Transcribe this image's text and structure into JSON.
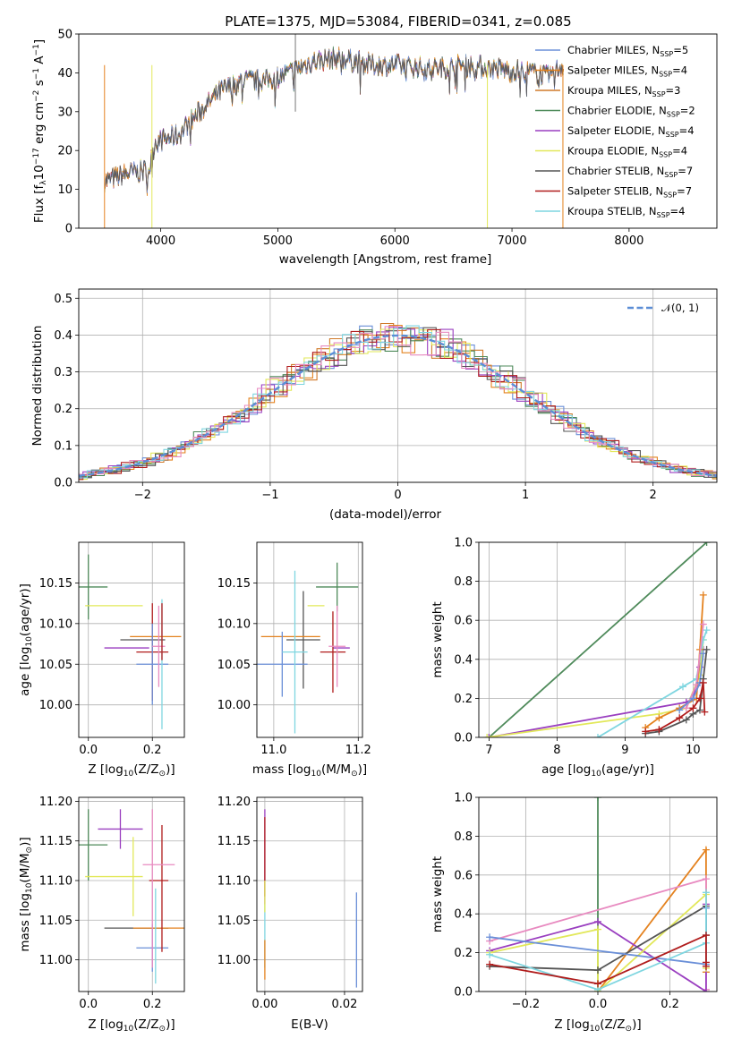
{
  "figure_title": "PLATE=1375, MJD=53084, FIBERID=0341, z=0.085",
  "colors": {
    "chabrier_miles": "#6a8fd8",
    "salpeter_miles": "#e4821f",
    "kroupa_miles": "#d07a2a",
    "chabrier_elodie": "#4e8a5a",
    "salpeter_elodie": "#9a3fc0",
    "kroupa_elodie": "#e2e85a",
    "chabrier_stelib": "#555555",
    "salpeter_stelib": "#b01c1c",
    "kroupa_stelib": "#7fd6e0",
    "pink": "#e88ac0",
    "normal": "#5b8ed6",
    "grid": "#b0b0b0"
  },
  "chart_data": [
    {
      "id": "spectrum",
      "type": "line",
      "xlabel": "wavelength [Angstrom, rest frame]",
      "ylabel_main": "Flux [f",
      "ylabel_sub": "λ",
      "ylabel_rest": "10",
      "ylabel_exp": "−17",
      "ylabel_tail": " erg cm",
      "ylabel_exp2": "−2",
      "ylabel_tail2": " s",
      "ylabel_exp3": "−1",
      "ylabel_tail3": " A",
      "ylabel_exp4": "−1",
      "ylabel_end": "]",
      "xlim": [
        3300,
        8750
      ],
      "ylim": [
        0,
        50
      ],
      "xticks": [
        "4000",
        "5000",
        "6000",
        "7000",
        "8000"
      ],
      "yticks": [
        "0",
        "10",
        "20",
        "30",
        "40",
        "50"
      ],
      "legend_position": "upper right",
      "legend": [
        {
          "label": "Chabrier MILES, N",
          "sub": "SSP",
          "val": "=5",
          "color": "#6a8fd8"
        },
        {
          "label": "Salpeter MILES, N",
          "sub": "SSP",
          "val": "=4",
          "color": "#e4821f"
        },
        {
          "label": "Kroupa MILES, N",
          "sub": "SSP",
          "val": "=3",
          "color": "#d07a2a"
        },
        {
          "label": "Chabrier ELODIE, N",
          "sub": "SSP",
          "val": "=2",
          "color": "#4e8a5a"
        },
        {
          "label": "Salpeter ELODIE, N",
          "sub": "SSP",
          "val": "=4",
          "color": "#9a3fc0"
        },
        {
          "label": "Kroupa ELODIE, N",
          "sub": "SSP",
          "val": "=4",
          "color": "#e2e85a"
        },
        {
          "label": "Chabrier STELIB, N",
          "sub": "SSP",
          "val": "=7",
          "color": "#555555"
        },
        {
          "label": "Salpeter STELIB, N",
          "sub": "SSP",
          "val": "=7",
          "color": "#b01c1c"
        },
        {
          "label": "Kroupa STELIB, N",
          "sub": "SSP",
          "val": "=4",
          "color": "#7fd6e0"
        }
      ],
      "continuum": [
        [
          3520,
          12
        ],
        [
          3700,
          14
        ],
        [
          3900,
          15
        ],
        [
          3950,
          22
        ],
        [
          4150,
          24
        ],
        [
          4300,
          29
        ],
        [
          4500,
          35
        ],
        [
          4700,
          38
        ],
        [
          4900,
          38
        ],
        [
          5100,
          40
        ],
        [
          5300,
          43
        ],
        [
          5500,
          44
        ],
        [
          5800,
          42
        ],
        [
          6000,
          42
        ],
        [
          6300,
          41
        ],
        [
          6600,
          42
        ],
        [
          6900,
          41
        ],
        [
          7200,
          40
        ],
        [
          7300,
          39
        ],
        [
          7440,
          42
        ]
      ]
    },
    {
      "id": "residuals",
      "type": "line",
      "xlabel": "(data-model)/error",
      "ylabel": "Normed distribution",
      "xlim": [
        -2.5,
        2.5
      ],
      "ylim": [
        0,
        0.525
      ],
      "xticks": [
        "−2",
        "−1",
        "0",
        "1",
        "2"
      ],
      "yticks": [
        "0.0",
        "0.1",
        "0.2",
        "0.3",
        "0.4",
        "0.5"
      ],
      "legend": "𝒩(0, 1)",
      "legend_position": "upper right"
    },
    {
      "id": "age_vs_z",
      "type": "scatter",
      "xlabel": "Z [log",
      "ylabel": "age  [log",
      "xlim": [
        -0.03,
        0.3
      ],
      "ylim": [
        9.96,
        10.2
      ],
      "xticks": [
        "0.0",
        "0.2"
      ],
      "yticks": [
        "10.00",
        "10.05",
        "10.10",
        "10.15"
      ],
      "points": [
        {
          "x": 0.0,
          "y": 10.145,
          "xerr": 0.06,
          "yerr": 0.04,
          "color": "#4e8a5a"
        },
        {
          "x": 0.08,
          "y": 10.122,
          "xerr": 0.09,
          "yerr": 0.0,
          "color": "#e2e85a"
        },
        {
          "x": 0.12,
          "y": 10.07,
          "xerr": 0.07,
          "yerr": 0.0,
          "color": "#9a3fc0"
        },
        {
          "x": 0.17,
          "y": 10.08,
          "xerr": 0.07,
          "yerr": 0.0,
          "color": "#555555"
        },
        {
          "x": 0.21,
          "y": 10.084,
          "xerr": 0.08,
          "yerr": 0.0,
          "color": "#e4821f"
        },
        {
          "x": 0.2,
          "y": 10.065,
          "xerr": 0.05,
          "yerr": 0.06,
          "color": "#b01c1c"
        },
        {
          "x": 0.2,
          "y": 10.05,
          "xerr": 0.05,
          "yerr": 0.05,
          "color": "#6a8fd8"
        },
        {
          "x": 0.23,
          "y": 10.05,
          "xerr": 0.0,
          "yerr": 0.08,
          "color": "#7fd6e0"
        },
        {
          "x": 0.22,
          "y": 10.072,
          "xerr": 0.02,
          "yerr": 0.05,
          "color": "#e88ac0"
        },
        {
          "x": 0.23,
          "y": 10.09,
          "xerr": 0.0,
          "yerr": 0.035,
          "color": "#b01c1c"
        }
      ]
    },
    {
      "id": "age_vs_mass",
      "type": "scatter",
      "xlabel": "mass [log",
      "ylabel": "",
      "xlim": [
        10.96,
        11.21
      ],
      "ylim": [
        9.96,
        10.2
      ],
      "xticks": [
        "11.0",
        "11.2"
      ],
      "yticks": [
        "10.00",
        "10.05",
        "10.10",
        "10.15"
      ],
      "points": [
        {
          "x": 11.15,
          "y": 10.145,
          "xerr": 0.05,
          "yerr": 0.03,
          "color": "#4e8a5a"
        },
        {
          "x": 11.1,
          "y": 10.122,
          "xerr": 0.02,
          "yerr": 0.0,
          "color": "#e2e85a"
        },
        {
          "x": 11.16,
          "y": 10.07,
          "xerr": 0.02,
          "yerr": 0.0,
          "color": "#9a3fc0"
        },
        {
          "x": 11.07,
          "y": 10.08,
          "xerr": 0.04,
          "yerr": 0.06,
          "color": "#555555"
        },
        {
          "x": 11.04,
          "y": 10.084,
          "xerr": 0.07,
          "yerr": 0.0,
          "color": "#e4821f"
        },
        {
          "x": 11.14,
          "y": 10.065,
          "xerr": 0.03,
          "yerr": 0.05,
          "color": "#b01c1c"
        },
        {
          "x": 11.02,
          "y": 10.05,
          "xerr": 0.06,
          "yerr": 0.04,
          "color": "#6a8fd8"
        },
        {
          "x": 11.05,
          "y": 10.065,
          "xerr": 0.03,
          "yerr": 0.1,
          "color": "#7fd6e0"
        },
        {
          "x": 11.15,
          "y": 10.072,
          "xerr": 0.02,
          "yerr": 0.05,
          "color": "#e88ac0"
        }
      ]
    },
    {
      "id": "weight_vs_age",
      "type": "line",
      "xlabel": "age  [log",
      "ylabel": "mass weight",
      "xlim": [
        6.85,
        10.35
      ],
      "ylim": [
        0,
        1.0
      ],
      "xticks": [
        "7",
        "8",
        "9",
        "10"
      ],
      "yticks": [
        "0.0",
        "0.2",
        "0.4",
        "0.6",
        "0.8",
        "1.0"
      ],
      "series": [
        {
          "color": "#4e8a5a",
          "x": [
            7.0,
            10.2
          ],
          "y": [
            0.0,
            1.0
          ]
        },
        {
          "color": "#9a3fc0",
          "x": [
            7.0,
            9.9,
            10.0,
            10.1,
            10.15
          ],
          "y": [
            0.0,
            0.18,
            0.2,
            0.36,
            0.45
          ]
        },
        {
          "color": "#e2e85a",
          "x": [
            6.97,
            9.5,
            9.9,
            10.1,
            10.15
          ],
          "y": [
            0.0,
            0.12,
            0.15,
            0.32,
            0.5
          ]
        },
        {
          "color": "#7fd6e0",
          "x": [
            8.6,
            9.85,
            10.05,
            10.15,
            10.2
          ],
          "y": [
            0.0,
            0.26,
            0.3,
            0.5,
            0.55
          ]
        },
        {
          "color": "#e4821f",
          "x": [
            9.3,
            9.5,
            9.8,
            10.05,
            10.1,
            10.15
          ],
          "y": [
            0.05,
            0.1,
            0.15,
            0.2,
            0.45,
            0.73
          ]
        },
        {
          "color": "#e88ac0",
          "x": [
            9.9,
            10.05,
            10.15
          ],
          "y": [
            0.15,
            0.27,
            0.58
          ]
        },
        {
          "color": "#6a8fd8",
          "x": [
            9.8,
            10.0,
            10.1,
            10.15
          ],
          "y": [
            0.14,
            0.2,
            0.28,
            0.43
          ]
        },
        {
          "color": "#555555",
          "x": [
            9.3,
            9.5,
            9.9,
            10.0,
            10.1,
            10.15,
            10.2
          ],
          "y": [
            0.02,
            0.03,
            0.09,
            0.12,
            0.14,
            0.3,
            0.45
          ]
        },
        {
          "color": "#b01c1c",
          "x": [
            9.3,
            9.5,
            9.8,
            10.0,
            10.1,
            10.15,
            10.17
          ],
          "y": [
            0.03,
            0.04,
            0.1,
            0.15,
            0.2,
            0.28,
            0.13
          ]
        }
      ]
    },
    {
      "id": "mass_vs_z",
      "type": "scatter",
      "xlabel": "Z [log",
      "ylabel": "mass [log",
      "xlim": [
        -0.03,
        0.3
      ],
      "ylim": [
        10.96,
        11.205
      ],
      "xticks": [
        "0.0",
        "0.2"
      ],
      "yticks": [
        "11.00",
        "11.05",
        "11.10",
        "11.15",
        "11.20"
      ],
      "points": [
        {
          "x": 0.0,
          "y": 11.145,
          "xerr": 0.06,
          "yerr": 0.045,
          "color": "#4e8a5a"
        },
        {
          "x": 0.1,
          "y": 11.165,
          "xerr": 0.07,
          "yerr": 0.025,
          "color": "#9a3fc0"
        },
        {
          "x": 0.08,
          "y": 11.105,
          "xerr": 0.09,
          "yerr": 0.0,
          "color": "#e2e85a"
        },
        {
          "x": 0.14,
          "y": 11.105,
          "xerr": 0.0,
          "yerr": 0.05,
          "color": "#e2e85a"
        },
        {
          "x": 0.15,
          "y": 11.04,
          "xerr": 0.1,
          "yerr": 0.0,
          "color": "#555555"
        },
        {
          "x": 0.22,
          "y": 11.04,
          "xerr": 0.08,
          "yerr": 0.0,
          "color": "#e4821f"
        },
        {
          "x": 0.2,
          "y": 11.015,
          "xerr": 0.05,
          "yerr": 0.03,
          "color": "#6a8fd8"
        },
        {
          "x": 0.22,
          "y": 11.1,
          "xerr": 0.03,
          "yerr": 0.0,
          "color": "#b01c1c"
        },
        {
          "x": 0.2,
          "y": 11.09,
          "xerr": 0.0,
          "yerr": 0.1,
          "color": "#e88ac0"
        },
        {
          "x": 0.23,
          "y": 11.09,
          "xerr": 0.0,
          "yerr": 0.08,
          "color": "#b01c1c"
        },
        {
          "x": 0.21,
          "y": 11.03,
          "xerr": 0.0,
          "yerr": 0.06,
          "color": "#7fd6e0"
        },
        {
          "x": 0.22,
          "y": 11.12,
          "xerr": 0.05,
          "yerr": 0.0,
          "color": "#e88ac0"
        }
      ]
    },
    {
      "id": "mass_vs_ebv",
      "type": "scatter",
      "xlabel": "E(B-V)",
      "ylabel": "",
      "xlim": [
        -0.002,
        0.0245
      ],
      "ylim": [
        10.96,
        11.205
      ],
      "xticks": [
        "0.00",
        "0.02"
      ],
      "yticks": [
        "11.00",
        "11.05",
        "11.10",
        "11.15",
        "11.20"
      ],
      "points": [
        {
          "x": 0.0,
          "y": 11.13,
          "xerr": 0.0,
          "yerr": 0.06,
          "color": "#9a3fc0"
        },
        {
          "x": 0.0,
          "y": 11.13,
          "xerr": 0.0,
          "yerr": 0.05,
          "color": "#b01c1c"
        },
        {
          "x": 0.0,
          "y": 11.03,
          "xerr": 0.0,
          "yerr": 0.04,
          "color": "#7fd6e0"
        },
        {
          "x": 0.0,
          "y": 11.0,
          "xerr": 0.0,
          "yerr": 0.025,
          "color": "#e4821f"
        },
        {
          "x": 0.0,
          "y": 11.08,
          "xerr": 0.0,
          "yerr": 0.02,
          "color": "#e2e85a"
        },
        {
          "x": 0.023,
          "y": 11.025,
          "xerr": 0.0,
          "yerr": 0.06,
          "color": "#6a8fd8"
        }
      ]
    },
    {
      "id": "weight_vs_z",
      "type": "line",
      "xlabel": "Z [log",
      "ylabel": "mass weight",
      "xlim": [
        -0.33,
        0.33
      ],
      "ylim": [
        0,
        1.0
      ],
      "xticks": [
        "−0.2",
        "0.0",
        "0.2"
      ],
      "yticks": [
        "0.0",
        "0.2",
        "0.4",
        "0.6",
        "0.8",
        "1.0"
      ],
      "series": [
        {
          "color": "#4e8a5a",
          "x": [
            0.0,
            0.0
          ],
          "y": [
            0.0,
            1.0
          ]
        },
        {
          "color": "#e4821f",
          "x": [
            0.0,
            0.3,
            0.3
          ],
          "y": [
            0.0,
            0.73,
            0.1
          ]
        },
        {
          "color": "#e88ac0",
          "x": [
            -0.3,
            0.3,
            0.3
          ],
          "y": [
            0.26,
            0.58,
            0.01
          ]
        },
        {
          "color": "#9a3fc0",
          "x": [
            -0.3,
            0.0,
            0.3,
            0.3
          ],
          "y": [
            0.21,
            0.36,
            0.0,
            0.45
          ]
        },
        {
          "color": "#e2e85a",
          "x": [
            -0.3,
            0.0,
            0.0,
            0.3,
            0.3
          ],
          "y": [
            0.2,
            0.32,
            0.0,
            0.5,
            0.12
          ]
        },
        {
          "color": "#555555",
          "x": [
            -0.3,
            0.0,
            0.3,
            0.3
          ],
          "y": [
            0.13,
            0.11,
            0.44,
            0.29
          ]
        },
        {
          "color": "#6a8fd8",
          "x": [
            -0.3,
            0.3,
            0.3
          ],
          "y": [
            0.28,
            0.14,
            0.43
          ]
        },
        {
          "color": "#7fd6e0",
          "x": [
            -0.3,
            0.0,
            0.3,
            0.3
          ],
          "y": [
            0.19,
            0.01,
            0.25,
            0.51
          ]
        },
        {
          "color": "#b01c1c",
          "x": [
            -0.3,
            0.0,
            0.3,
            0.3,
            0.3
          ],
          "y": [
            0.14,
            0.04,
            0.29,
            0.13,
            0.15
          ]
        }
      ]
    }
  ],
  "shared": {
    "z_sub": "10",
    "z_tail": "(Z/Z",
    "z_sun": "⊙",
    "z_end": ")]",
    "age_tail": "(age/yr)]",
    "mass_tail": "(M/M",
    "mass_end": ")]",
    "ylabel_massweight": "mass weight"
  }
}
